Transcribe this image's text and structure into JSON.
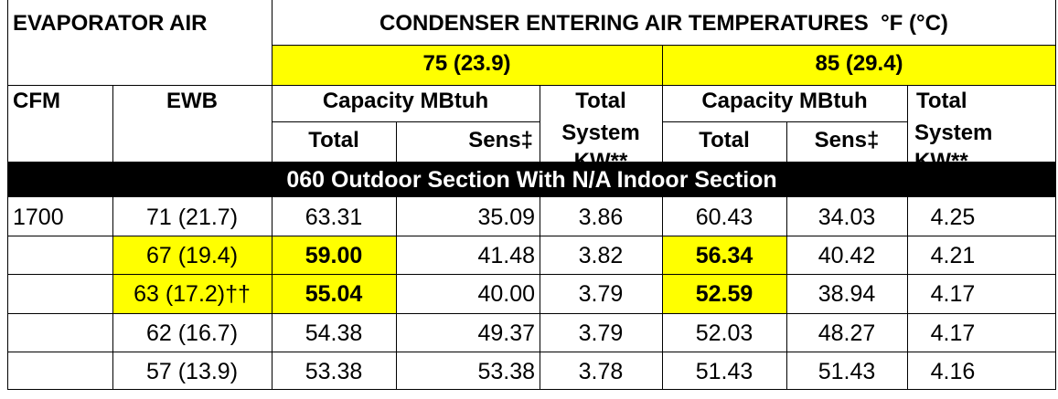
{
  "header": {
    "evaporator_air": "EVAPORATOR AIR",
    "condenser_title": "CONDENSER ENTERING AIR TEMPERATURES  °F (°C)",
    "temp_group_1": "75 (23.9)",
    "temp_group_2": "85 (29.4)",
    "cfm": "CFM",
    "ewb": "EWB",
    "capacity_1": "Capacity MBtuh",
    "capacity_2": "Capacity MBtuh",
    "total_system_1": "Total",
    "total_system_1b": "System",
    "total_system_1c": "KW**",
    "total_system_2": "Total",
    "total_system_2b": "System",
    "total_system_2c": "KW**",
    "total_1": "Total",
    "sens_1": "Sens‡",
    "total_2": "Total",
    "sens_2": "Sens‡"
  },
  "section_band": "060 Outdoor Section With N/A Indoor Section",
  "rows": [
    {
      "cfm": "1700",
      "ewb": "71 (21.7)",
      "t1": "63.31",
      "s1": "35.09",
      "kw1": "3.86",
      "t2": "60.43",
      "s2": "34.03",
      "kw2": "4.25"
    },
    {
      "cfm": "",
      "ewb": "67 (19.4)",
      "t1": "59.00",
      "s1": "41.48",
      "kw1": "3.82",
      "t2": "56.34",
      "s2": "40.42",
      "kw2": "4.21"
    },
    {
      "cfm": "",
      "ewb": "63 (17.2)††",
      "t1": "55.04",
      "s1": "40.00",
      "kw1": "3.79",
      "t2": "52.59",
      "s2": "38.94",
      "kw2": "4.17"
    },
    {
      "cfm": "",
      "ewb": "62 (16.7)",
      "t1": "54.38",
      "s1": "49.37",
      "kw1": "3.79",
      "t2": "52.03",
      "s2": "48.27",
      "kw2": "4.17"
    },
    {
      "cfm": "",
      "ewb": "57 (13.9)",
      "t1": "53.38",
      "s1": "53.38",
      "kw1": "3.78",
      "t2": "51.43",
      "s2": "51.43",
      "kw2": "4.16"
    }
  ],
  "colors": {
    "highlight": "#ffff00",
    "band_background": "#000000",
    "band_text": "#ffffff"
  }
}
